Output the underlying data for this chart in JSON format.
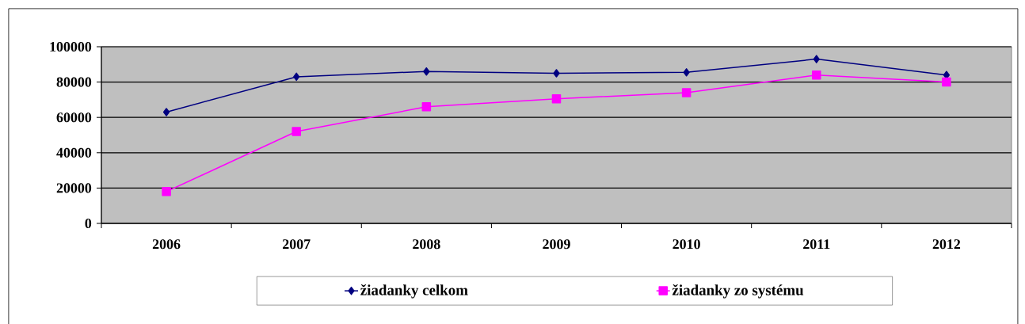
{
  "chart_data": {
    "type": "line",
    "categories": [
      "2006",
      "2007",
      "2008",
      "2009",
      "2010",
      "2011",
      "2012"
    ],
    "series": [
      {
        "name": "žiadanky celkom",
        "color": "#000080",
        "marker": "diamond",
        "values": [
          63000,
          83000,
          86000,
          85000,
          85500,
          93000,
          84000
        ]
      },
      {
        "name": "žiadanky zo systému",
        "color": "#ff00ff",
        "marker": "square",
        "values": [
          18000,
          52000,
          66000,
          70500,
          74000,
          84000,
          80000
        ]
      }
    ],
    "ylim": [
      0,
      100000
    ],
    "yticks": [
      0,
      20000,
      40000,
      60000,
      80000,
      100000
    ],
    "grid": "y",
    "legend": "bottom"
  }
}
